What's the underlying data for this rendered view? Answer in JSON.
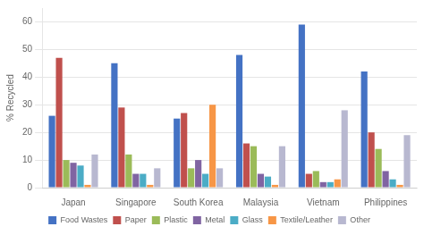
{
  "chart_data": {
    "type": "bar",
    "categories": [
      "Japan",
      "Singapore",
      "South Korea",
      "Malaysia",
      "Vietnam",
      "Philippines"
    ],
    "series": [
      {
        "name": "Food Wastes",
        "color": "#4472C4",
        "values": [
          26,
          45,
          25,
          48,
          59,
          42
        ]
      },
      {
        "name": "Paper",
        "color": "#C0504D",
        "values": [
          47,
          29,
          27,
          16,
          5,
          20
        ]
      },
      {
        "name": "Plastic",
        "color": "#9BBB59",
        "values": [
          10,
          12,
          7,
          15,
          6,
          14
        ]
      },
      {
        "name": "Metal",
        "color": "#8064A2",
        "values": [
          9,
          5,
          10,
          5,
          2,
          6
        ]
      },
      {
        "name": "Glass",
        "color": "#4BACC6",
        "values": [
          8,
          5,
          5,
          4,
          2,
          3
        ]
      },
      {
        "name": "Textile/Leather",
        "color": "#F79646",
        "values": [
          1,
          1,
          30,
          1,
          3,
          1
        ]
      },
      {
        "name": "Other",
        "color": "#B8B8D0",
        "values": [
          12,
          7,
          7,
          15,
          28,
          19
        ]
      }
    ],
    "ylabel": "% Recycled",
    "ylim": [
      0,
      65
    ],
    "yticks": [
      0,
      10,
      20,
      30,
      40,
      50,
      60
    ],
    "grid": true,
    "legend": "bottom"
  }
}
